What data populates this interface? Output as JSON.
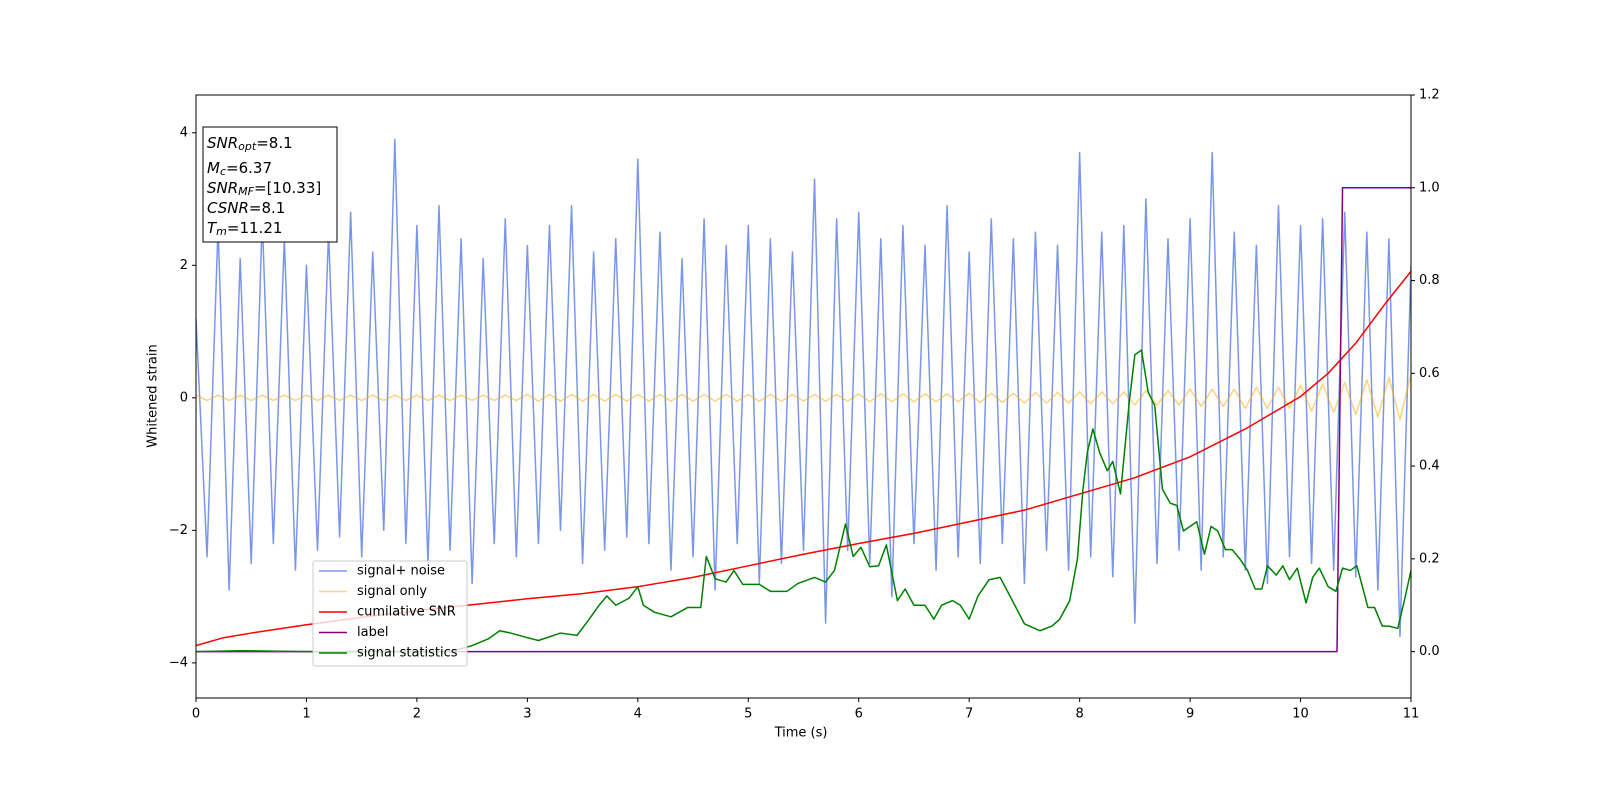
{
  "chart_data": {
    "type": "line",
    "xlabel": "Time (s)",
    "ylabel": "Whitened strain",
    "xlim": [
      0,
      11
    ],
    "xticks": [
      0,
      1,
      2,
      3,
      4,
      5,
      6,
      7,
      8,
      9,
      10,
      11
    ],
    "ylim": [
      -4.53,
      4.57
    ],
    "yticks": [
      {
        "value": -4,
        "label": "−4"
      },
      {
        "value": -2,
        "label": "−2"
      },
      0,
      2,
      4
    ],
    "y2lim": [
      -0.1,
      1.2
    ],
    "y2ticks": [
      {
        "value": 0,
        "label": "0.0"
      },
      0.2,
      0.4,
      0.6,
      0.8,
      {
        "value": 1,
        "label": "1.0"
      },
      1.2
    ],
    "annotations": [
      {
        "symbol": "SNR",
        "subscript": "opt",
        "text": "=8.1"
      },
      {
        "symbol": "M",
        "subscript": "c",
        "text": "=6.37"
      },
      {
        "symbol": "SNR",
        "subscript": "MF",
        "text": "=[10.33]"
      },
      {
        "symbol": "CSNR",
        "text": "=8.1"
      },
      {
        "symbol": "T",
        "subscript": "m",
        "text": "=11.21"
      }
    ],
    "x": [
      0,
      0.1,
      0.2,
      0.3,
      0.4,
      0.5,
      0.6,
      0.7,
      0.8,
      0.9,
      1,
      1.1,
      1.2,
      1.3,
      1.4,
      1.5,
      1.6,
      1.7,
      1.8,
      1.9,
      2,
      2.1,
      2.2,
      2.3,
      2.4,
      2.5,
      2.6,
      2.7,
      2.8,
      2.9,
      3,
      3.1,
      3.2,
      3.3,
      3.4,
      3.5,
      3.6,
      3.7,
      3.8,
      3.9,
      4,
      4.1,
      4.2,
      4.3,
      4.4,
      4.5,
      4.6,
      4.7,
      4.8,
      4.9,
      5,
      5.1,
      5.2,
      5.3,
      5.4,
      5.5,
      5.6,
      5.7,
      5.8,
      5.9,
      6,
      6.1,
      6.2,
      6.3,
      6.4,
      6.5,
      6.6,
      6.7,
      6.8,
      6.9,
      7,
      7.1,
      7.2,
      7.3,
      7.4,
      7.5,
      7.6,
      7.7,
      7.8,
      7.9,
      8,
      8.1,
      8.2,
      8.3,
      8.4,
      8.5,
      8.6,
      8.7,
      8.8,
      8.9,
      9,
      9.1,
      9.2,
      9.3,
      9.4,
      9.5,
      9.6,
      9.7,
      9.8,
      9.9,
      10,
      10.1,
      10.2,
      10.3,
      10.4,
      10.5,
      10.6,
      10.7,
      10.8,
      10.9,
      11
    ],
    "series": [
      {
        "name": "signal+ noise",
        "color": "#4169e1",
        "values": [
          1.2,
          -2.4,
          2.6,
          -2.9,
          2.1,
          -2.5,
          2.7,
          -2.2,
          2.4,
          -2.6,
          2.0,
          -2.3,
          2.5,
          -2.1,
          2.8,
          -2.4,
          2.2,
          -2.0,
          3.9,
          -2.2,
          2.6,
          -2.5,
          2.9,
          -2.3,
          2.4,
          -2.8,
          2.1,
          -2.2,
          2.7,
          -2.4,
          2.3,
          -2.2,
          2.6,
          -2.0,
          2.9,
          -2.5,
          2.2,
          -2.3,
          2.4,
          -2.1,
          3.6,
          -2.2,
          2.5,
          -2.6,
          2.1,
          -2.4,
          2.7,
          -2.9,
          2.3,
          -2.2,
          2.6,
          -2.8,
          2.4,
          -2.5,
          2.2,
          -2.3,
          3.3,
          -3.4,
          2.7,
          -2.3,
          2.8,
          -2.5,
          2.4,
          -3.0,
          2.6,
          -2.2,
          2.3,
          -2.6,
          2.9,
          -2.4,
          2.2,
          -2.5,
          2.7,
          -2.2,
          2.4,
          -2.8,
          2.5,
          -2.3,
          2.3,
          -2.6,
          3.7,
          -2.4,
          2.5,
          -2.7,
          2.6,
          -3.4,
          3.0,
          -2.5,
          2.4,
          -2.3,
          2.7,
          -2.6,
          3.7,
          -2.4,
          2.5,
          -2.6,
          2.3,
          -2.8,
          2.9,
          -2.4,
          2.6,
          -2.5,
          2.7,
          -2.6,
          2.8,
          -2.7,
          2.5,
          -2.9,
          2.4,
          -3.6,
          2.0
        ]
      },
      {
        "name": "signal only",
        "color": "#ffa500",
        "values": [
          0.04,
          -0.04,
          0.04,
          -0.04,
          0.04,
          -0.04,
          0.04,
          -0.04,
          0.04,
          -0.04,
          0.04,
          -0.04,
          0.04,
          -0.04,
          0.04,
          -0.04,
          0.04,
          -0.04,
          0.04,
          -0.04,
          0.04,
          -0.04,
          0.04,
          -0.04,
          0.04,
          -0.04,
          0.04,
          -0.04,
          0.04,
          -0.04,
          0.05,
          -0.05,
          0.05,
          -0.05,
          0.05,
          -0.05,
          0.05,
          -0.05,
          0.05,
          -0.05,
          0.05,
          -0.05,
          0.05,
          -0.05,
          0.05,
          -0.05,
          0.05,
          -0.05,
          0.05,
          -0.05,
          0.05,
          -0.05,
          0.05,
          -0.05,
          0.05,
          -0.05,
          0.05,
          -0.05,
          0.05,
          -0.05,
          0.06,
          -0.06,
          0.06,
          -0.06,
          0.06,
          -0.06,
          0.06,
          -0.06,
          0.06,
          -0.06,
          0.07,
          -0.07,
          0.07,
          -0.07,
          0.07,
          -0.08,
          0.08,
          -0.08,
          0.08,
          -0.08,
          0.09,
          -0.09,
          0.09,
          -0.09,
          0.09,
          -0.11,
          0.11,
          -0.11,
          0.11,
          -0.11,
          0.13,
          -0.13,
          0.13,
          -0.13,
          0.13,
          -0.16,
          0.16,
          -0.16,
          0.16,
          -0.16,
          0.19,
          -0.2,
          0.21,
          -0.22,
          0.23,
          -0.25,
          0.27,
          -0.29,
          0.31,
          -0.33,
          0.35
        ]
      },
      {
        "name": "cumilative SNR",
        "color": "#ff0000",
        "axis": "y2",
        "x": [
          0,
          0.25,
          0.5,
          1,
          1.5,
          2,
          2.5,
          3,
          3.5,
          4,
          4.5,
          5,
          5.5,
          6,
          6.5,
          7,
          7.5,
          8,
          8.5,
          9,
          9.5,
          10,
          10.25,
          10.5,
          10.75,
          11
        ],
        "values": [
          0.013,
          0.03,
          0.04,
          0.058,
          0.074,
          0.088,
          0.101,
          0.114,
          0.125,
          0.14,
          0.16,
          0.185,
          0.21,
          0.233,
          0.255,
          0.28,
          0.305,
          0.34,
          0.375,
          0.42,
          0.48,
          0.55,
          0.6,
          0.665,
          0.745,
          0.82
        ]
      },
      {
        "name": "label",
        "color": "#800080",
        "axis": "y2",
        "x": [
          0,
          10.33,
          10.38,
          11
        ],
        "values": [
          0,
          0,
          1,
          1
        ]
      },
      {
        "name": "signal statistics",
        "color": "#008000",
        "axis": "y2",
        "x": [
          0,
          0.4,
          1,
          2,
          2.3,
          2.5,
          2.65,
          2.75,
          2.85,
          3,
          3.1,
          3.3,
          3.45,
          3.55,
          3.65,
          3.72,
          3.8,
          3.92,
          4,
          4.05,
          4.15,
          4.3,
          4.45,
          4.57,
          4.62,
          4.7,
          4.8,
          4.87,
          4.95,
          5.1,
          5.2,
          5.35,
          5.45,
          5.6,
          5.7,
          5.78,
          5.88,
          5.95,
          6.02,
          6.1,
          6.18,
          6.25,
          6.35,
          6.42,
          6.5,
          6.6,
          6.68,
          6.75,
          6.85,
          6.92,
          7,
          7.08,
          7.18,
          7.28,
          7.38,
          7.5,
          7.64,
          7.75,
          7.82,
          7.91,
          7.98,
          8.03,
          8.07,
          8.12,
          8.18,
          8.25,
          8.3,
          8.37,
          8.45,
          8.5,
          8.56,
          8.62,
          8.68,
          8.75,
          8.82,
          8.88,
          8.94,
          9,
          9.06,
          9.13,
          9.19,
          9.25,
          9.32,
          9.38,
          9.45,
          9.52,
          9.59,
          9.65,
          9.7,
          9.78,
          9.84,
          9.9,
          9.97,
          10.05,
          10.11,
          10.17,
          10.25,
          10.32,
          10.38,
          10.45,
          10.51,
          10.61,
          10.67,
          10.74,
          10.8,
          10.88,
          10.94,
          11
        ],
        "values": [
          0,
          0.002,
          0,
          0,
          0,
          0.013,
          0.028,
          0.045,
          0.04,
          0.03,
          0.024,
          0.04,
          0.035,
          0.067,
          0.1,
          0.12,
          0.1,
          0.115,
          0.14,
          0.1,
          0.085,
          0.075,
          0.095,
          0.095,
          0.205,
          0.157,
          0.15,
          0.175,
          0.145,
          0.145,
          0.13,
          0.13,
          0.147,
          0.16,
          0.15,
          0.175,
          0.275,
          0.205,
          0.225,
          0.183,
          0.185,
          0.23,
          0.11,
          0.135,
          0.1,
          0.1,
          0.07,
          0.1,
          0.11,
          0.1,
          0.07,
          0.12,
          0.155,
          0.16,
          0.115,
          0.06,
          0.045,
          0.055,
          0.07,
          0.11,
          0.2,
          0.35,
          0.43,
          0.48,
          0.43,
          0.39,
          0.41,
          0.34,
          0.54,
          0.64,
          0.65,
          0.56,
          0.53,
          0.35,
          0.32,
          0.315,
          0.26,
          0.27,
          0.28,
          0.21,
          0.27,
          0.26,
          0.22,
          0.22,
          0.2,
          0.175,
          0.135,
          0.135,
          0.185,
          0.165,
          0.185,
          0.155,
          0.18,
          0.105,
          0.16,
          0.18,
          0.14,
          0.13,
          0.18,
          0.175,
          0.185,
          0.095,
          0.095,
          0.055,
          0.055,
          0.05,
          0.11,
          0.175
        ]
      }
    ]
  }
}
